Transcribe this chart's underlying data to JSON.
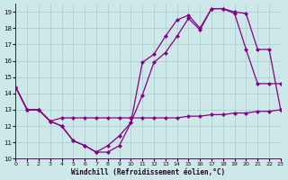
{
  "xlabel": "Windchill (Refroidissement éolien,°C)",
  "xlim": [
    0,
    23
  ],
  "ylim": [
    10,
    19.5
  ],
  "yticks": [
    10,
    11,
    12,
    13,
    14,
    15,
    16,
    17,
    18,
    19
  ],
  "xticks": [
    0,
    1,
    2,
    3,
    4,
    5,
    6,
    7,
    8,
    9,
    10,
    11,
    12,
    13,
    14,
    15,
    16,
    17,
    18,
    19,
    20,
    21,
    22,
    23
  ],
  "bg_color": "#cce8e8",
  "grid_color": "#aacccc",
  "line_color": "#880088",
  "line1_x": [
    0,
    1,
    2,
    3,
    4,
    5,
    6,
    7,
    8,
    9,
    10,
    11,
    12,
    13,
    14,
    15,
    16,
    17,
    18,
    19,
    20,
    21,
    22,
    23
  ],
  "line1_y": [
    14.4,
    13.0,
    13.0,
    12.3,
    12.0,
    11.1,
    10.8,
    10.4,
    10.4,
    10.8,
    12.2,
    15.9,
    16.4,
    17.5,
    18.5,
    18.8,
    18.0,
    19.2,
    19.2,
    18.9,
    16.7,
    14.6,
    14.6,
    14.6
  ],
  "line2_x": [
    0,
    1,
    2,
    3,
    4,
    5,
    6,
    7,
    8,
    9,
    10,
    11,
    12,
    13,
    14,
    15,
    16,
    17,
    18,
    19,
    20,
    21,
    22,
    23
  ],
  "line2_y": [
    14.4,
    13.0,
    13.0,
    12.3,
    12.5,
    12.5,
    12.5,
    12.5,
    12.5,
    12.5,
    12.5,
    12.5,
    12.5,
    12.5,
    12.5,
    12.6,
    12.6,
    12.7,
    12.7,
    12.8,
    12.8,
    12.9,
    12.9,
    13.0
  ],
  "line3_x": [
    0,
    1,
    2,
    3,
    4,
    5,
    6,
    7,
    8,
    9,
    10,
    11,
    12,
    13,
    14,
    15,
    16,
    17,
    18,
    19,
    20,
    21,
    22,
    23
  ],
  "line3_y": [
    14.4,
    13.0,
    13.0,
    12.3,
    12.0,
    11.1,
    10.8,
    10.4,
    10.8,
    11.4,
    12.2,
    13.9,
    15.9,
    16.5,
    17.5,
    18.6,
    17.9,
    19.2,
    19.2,
    19.0,
    18.9,
    16.7,
    16.7,
    13.0
  ]
}
